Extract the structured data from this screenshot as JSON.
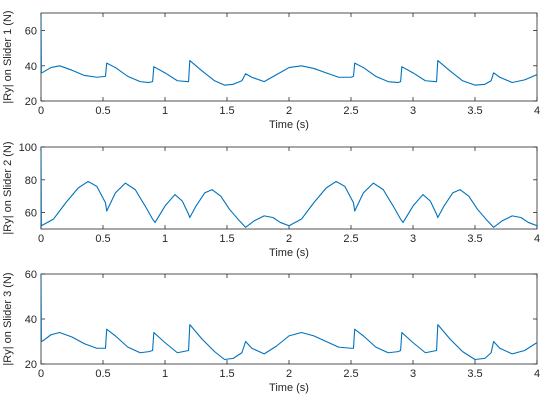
{
  "colors": {
    "line": "#0072BD",
    "axis": "#262626",
    "background": "#ffffff"
  },
  "chart_data": [
    {
      "type": "line",
      "xlabel": "Time (s)",
      "ylabel": "|Ry| on Slider 1 (N)",
      "xlim": [
        0,
        4
      ],
      "ylim": [
        20,
        70
      ],
      "xticks": [
        0,
        0.5,
        1,
        1.5,
        2,
        2.5,
        3,
        3.5,
        4
      ],
      "xtick_labels": [
        "0",
        "0.5",
        "1",
        "1.5",
        "2",
        "2.5",
        "3",
        "3.5",
        "4"
      ],
      "yticks": [
        20,
        40,
        60
      ],
      "ytick_labels": [
        "20",
        "40",
        "60"
      ],
      "grid": false,
      "series": [
        {
          "x": [
            0,
            0.003,
            0.02,
            0.08,
            0.15,
            0.25,
            0.35,
            0.45,
            0.52,
            0.53,
            0.6,
            0.7,
            0.8,
            0.87,
            0.9,
            0.91,
            1.0,
            1.1,
            1.19,
            1.2,
            1.3,
            1.4,
            1.48,
            1.55,
            1.62,
            1.65,
            1.7,
            1.8,
            1.9,
            2.0,
            2.1,
            2.2,
            2.3,
            2.4,
            2.5,
            2.52,
            2.53,
            2.6,
            2.7,
            2.8,
            2.88,
            2.9,
            2.91,
            3.0,
            3.1,
            3.19,
            3.2,
            3.3,
            3.4,
            3.5,
            3.58,
            3.63,
            3.65,
            3.7,
            3.8,
            3.9,
            4.0
          ],
          "y": [
            70,
            36,
            36.5,
            39,
            40,
            37.5,
            34.5,
            33.5,
            34,
            41.5,
            39,
            34,
            31,
            30.5,
            31,
            39.5,
            36,
            31.5,
            31,
            43,
            37,
            31.5,
            29,
            29.5,
            31.5,
            35.5,
            33.5,
            31,
            35,
            39,
            40,
            38.5,
            36,
            33.5,
            33.5,
            34,
            41.5,
            39,
            34,
            31,
            30.5,
            31,
            39.5,
            36,
            31.5,
            31,
            43,
            37,
            31.5,
            29,
            29.5,
            31.5,
            36,
            33.5,
            30.5,
            32,
            35
          ]
        }
      ]
    },
    {
      "type": "line",
      "xlabel": "Time (s)",
      "ylabel": "|Ry| on Slider 2 (N)",
      "xlim": [
        0,
        4
      ],
      "ylim": [
        50,
        100
      ],
      "xticks": [
        0,
        0.5,
        1,
        1.5,
        2,
        2.5,
        3,
        3.5,
        4
      ],
      "xtick_labels": [
        "0",
        "0.5",
        "1",
        "1.5",
        "2",
        "2.5",
        "3",
        "3.5",
        "4"
      ],
      "yticks": [
        60,
        80,
        100
      ],
      "ytick_labels": [
        "60",
        "80",
        "100"
      ],
      "grid": false,
      "series": [
        {
          "x": [
            0,
            0.003,
            0.1,
            0.2,
            0.3,
            0.38,
            0.45,
            0.52,
            0.53,
            0.6,
            0.68,
            0.76,
            0.84,
            0.9,
            0.92,
            1.0,
            1.08,
            1.14,
            1.19,
            1.2,
            1.25,
            1.32,
            1.38,
            1.45,
            1.52,
            1.6,
            1.65,
            1.72,
            1.8,
            1.87,
            1.93,
            2.0,
            2.1,
            2.2,
            2.3,
            2.38,
            2.45,
            2.52,
            2.53,
            2.6,
            2.68,
            2.76,
            2.84,
            2.9,
            2.92,
            3.0,
            3.08,
            3.14,
            3.19,
            3.2,
            3.25,
            3.32,
            3.38,
            3.45,
            3.52,
            3.6,
            3.65,
            3.72,
            3.8,
            3.87,
            3.93,
            4.0
          ],
          "y": [
            100,
            52,
            56,
            66,
            75,
            79,
            76,
            66,
            61,
            72,
            78,
            74,
            64,
            56,
            54,
            64,
            71,
            67,
            59,
            57,
            64,
            72,
            74,
            70,
            62,
            55,
            51,
            55,
            58,
            57,
            54,
            52,
            56,
            66,
            75,
            79,
            76,
            66,
            61,
            72,
            78,
            74,
            64,
            56,
            54,
            64,
            71,
            67,
            59,
            57,
            64,
            72,
            74,
            70,
            62,
            55,
            51,
            55,
            58,
            57,
            54,
            52
          ]
        }
      ]
    },
    {
      "type": "line",
      "xlabel": "Time (s)",
      "ylabel": "|Ry| on Slider 3 (N)",
      "xlim": [
        0,
        4
      ],
      "ylim": [
        20,
        60
      ],
      "xticks": [
        0,
        0.5,
        1,
        1.5,
        2,
        2.5,
        3,
        3.5,
        4
      ],
      "xtick_labels": [
        "0",
        "0.5",
        "1",
        "1.5",
        "2",
        "2.5",
        "3",
        "3.5",
        "4"
      ],
      "yticks": [
        20,
        40,
        60
      ],
      "ytick_labels": [
        "20",
        "40",
        "60"
      ],
      "grid": false,
      "series": [
        {
          "x": [
            0,
            0.003,
            0.02,
            0.08,
            0.15,
            0.25,
            0.35,
            0.45,
            0.52,
            0.53,
            0.6,
            0.7,
            0.8,
            0.87,
            0.9,
            0.91,
            1.0,
            1.1,
            1.19,
            1.2,
            1.3,
            1.4,
            1.48,
            1.55,
            1.62,
            1.65,
            1.7,
            1.8,
            1.9,
            2.0,
            2.1,
            2.2,
            2.3,
            2.4,
            2.5,
            2.52,
            2.53,
            2.6,
            2.7,
            2.8,
            2.88,
            2.9,
            2.91,
            3.0,
            3.1,
            3.19,
            3.2,
            3.3,
            3.4,
            3.5,
            3.58,
            3.63,
            3.65,
            3.7,
            3.8,
            3.9,
            4.0
          ],
          "y": [
            60,
            30,
            30.5,
            33,
            34,
            32,
            29,
            27,
            27,
            35.5,
            32.5,
            27.5,
            25,
            25.5,
            26,
            34,
            29.5,
            25,
            26,
            37.5,
            31,
            25.5,
            22,
            22.5,
            25,
            30,
            27,
            24.5,
            28,
            32.5,
            34,
            32.5,
            30,
            27.5,
            27,
            27,
            35.5,
            32.5,
            27.5,
            25,
            25.5,
            26,
            34,
            29.5,
            25,
            26,
            37.5,
            31,
            25.5,
            22,
            22.5,
            25,
            30,
            27,
            24.5,
            26,
            29.5
          ]
        }
      ]
    }
  ]
}
